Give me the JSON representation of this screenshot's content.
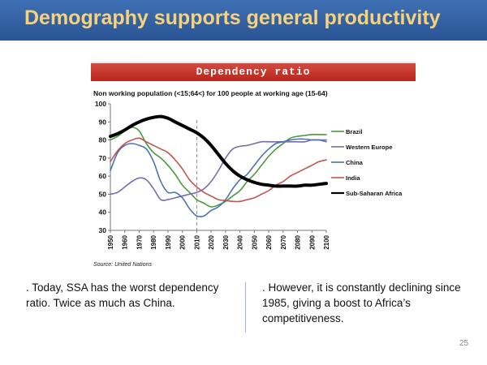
{
  "slide": {
    "title": "Demography supports general productivity",
    "page_number": "25"
  },
  "chart_data": {
    "type": "line",
    "banner": "Dependency ratio",
    "title": "Non working population (<15;64<) for 100 people at working age (15-64)",
    "source": "Source: United Nations",
    "xlabel": "",
    "ylabel": "",
    "ylim": [
      30,
      100
    ],
    "yticks": [
      30,
      40,
      50,
      60,
      70,
      80,
      90,
      100
    ],
    "xlim": [
      1950,
      2100
    ],
    "xticks": [
      1950,
      1960,
      1970,
      1980,
      1990,
      2000,
      2010,
      2020,
      2030,
      2040,
      2050,
      2060,
      2070,
      2080,
      2090,
      2100
    ],
    "vline_x": 2010,
    "grid": false,
    "legend_position": "right",
    "series": [
      {
        "name": "Brazil",
        "color": "#4a9a3c",
        "width": 1.6,
        "x": [
          1950,
          1955,
          1960,
          1965,
          1970,
          1975,
          1980,
          1985,
          1990,
          1995,
          2000,
          2005,
          2010,
          2015,
          2020,
          2025,
          2030,
          2035,
          2040,
          2045,
          2050,
          2055,
          2060,
          2065,
          2070,
          2075,
          2080,
          2085,
          2090,
          2095,
          2100
        ],
        "y": [
          80,
          82,
          85,
          87,
          85,
          78,
          73,
          70,
          66,
          61,
          55,
          51,
          47,
          45,
          43,
          44,
          46,
          49,
          52,
          57,
          61,
          66,
          71,
          75,
          78,
          81,
          82,
          82.5,
          83,
          83,
          83
        ]
      },
      {
        "name": "Western Europe",
        "color": "#7a6aaa",
        "width": 1.6,
        "x": [
          1950,
          1955,
          1960,
          1965,
          1970,
          1975,
          1980,
          1985,
          1990,
          1995,
          2000,
          2005,
          2010,
          2015,
          2020,
          2025,
          2030,
          2035,
          2040,
          2045,
          2050,
          2055,
          2060,
          2065,
          2070,
          2075,
          2080,
          2085,
          2090,
          2095,
          2100
        ],
        "y": [
          50,
          51,
          54,
          57,
          59,
          58,
          53,
          47,
          47,
          48,
          49,
          50,
          51,
          53,
          57,
          63,
          70,
          75,
          76.5,
          77,
          78,
          79,
          79,
          79,
          79,
          79,
          79,
          79,
          80,
          80,
          80
        ]
      },
      {
        "name": "China",
        "color": "#4a73b5",
        "width": 1.6,
        "x": [
          1950,
          1955,
          1960,
          1965,
          1970,
          1975,
          1980,
          1985,
          1990,
          1995,
          2000,
          2005,
          2010,
          2015,
          2020,
          2025,
          2030,
          2035,
          2040,
          2045,
          2050,
          2055,
          2060,
          2065,
          2070,
          2075,
          2080,
          2085,
          2090,
          2095,
          2100
        ],
        "y": [
          63,
          73,
          77,
          78,
          77,
          75,
          68,
          57,
          51,
          51,
          48,
          42,
          38,
          38,
          41,
          43,
          47,
          53,
          58,
          61,
          66,
          71,
          75,
          78,
          79,
          80,
          80.5,
          80.5,
          80,
          80,
          79
        ]
      },
      {
        "name": "India",
        "color": "#c25450",
        "width": 1.6,
        "x": [
          1950,
          1955,
          1960,
          1965,
          1970,
          1975,
          1980,
          1985,
          1990,
          1995,
          2000,
          2005,
          2010,
          2015,
          2020,
          2025,
          2030,
          2035,
          2040,
          2045,
          2050,
          2055,
          2060,
          2065,
          2070,
          2075,
          2080,
          2085,
          2090,
          2095,
          2100
        ],
        "y": [
          68,
          74,
          78,
          80,
          81,
          79,
          77,
          75,
          73,
          69,
          64,
          58,
          54,
          51,
          49,
          47,
          46.5,
          46,
          46,
          47,
          48,
          50,
          52,
          55,
          57,
          60,
          62,
          64,
          66,
          68,
          69
        ]
      },
      {
        "name": "Sub-Saharan Africa",
        "color": "#000000",
        "width": 4,
        "x": [
          1950,
          1955,
          1960,
          1965,
          1970,
          1975,
          1980,
          1985,
          1990,
          1995,
          2000,
          2005,
          2010,
          2015,
          2020,
          2025,
          2030,
          2035,
          2040,
          2045,
          2050,
          2055,
          2060,
          2065,
          2070,
          2075,
          2080,
          2085,
          2090,
          2095,
          2100
        ],
        "y": [
          82,
          83.5,
          85.5,
          88,
          90,
          91.5,
          92.5,
          93,
          92,
          90,
          88,
          86,
          84,
          81,
          77,
          72,
          67,
          63,
          60,
          58,
          56.5,
          55.5,
          55,
          54.5,
          54.5,
          54.5,
          54.5,
          55,
          55,
          55.5,
          56
        ]
      }
    ]
  },
  "text": {
    "left": ". Today, SSA has the worst dependency ratio. Twice as much as China.",
    "right": ". However, it is constantly declining since 1985, giving a boost to Africa’s competitiveness."
  }
}
